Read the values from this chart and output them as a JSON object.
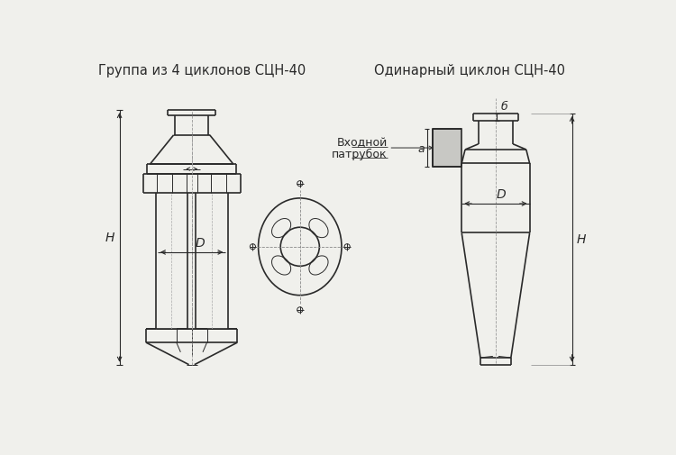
{
  "title_left": "Группа из 4 циклонов СЦН-40",
  "title_right": "Одинарный циклон СЦН-40",
  "label_H": "H",
  "label_D": "D",
  "label_a": "a",
  "label_b": "б",
  "label_inlet_1": "Входной",
  "label_inlet_2": "патрубок",
  "line_color": "#2a2a2a",
  "bg_color": "#f0f0ec",
  "font_size_title": 10.5,
  "font_size_label": 10
}
